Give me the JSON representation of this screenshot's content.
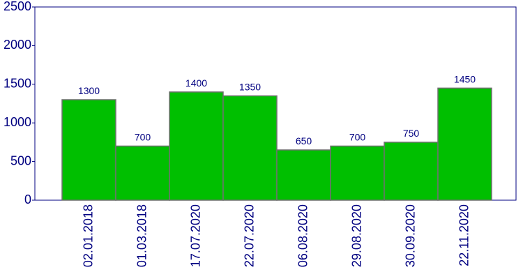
{
  "chart_data": {
    "type": "bar",
    "categories": [
      "02.01.2018",
      "01.03.2018",
      "17.07.2020",
      "22.07.2020",
      "06.08.2020",
      "29.08.2020",
      "30.09.2020",
      "22.11.2020"
    ],
    "values": [
      1300,
      700,
      1400,
      1350,
      650,
      700,
      750,
      1450
    ],
    "color": "#00bf00",
    "ylim": [
      0,
      2500
    ],
    "yticks": [
      0,
      500,
      1000,
      1500,
      2000,
      2500
    ]
  }
}
